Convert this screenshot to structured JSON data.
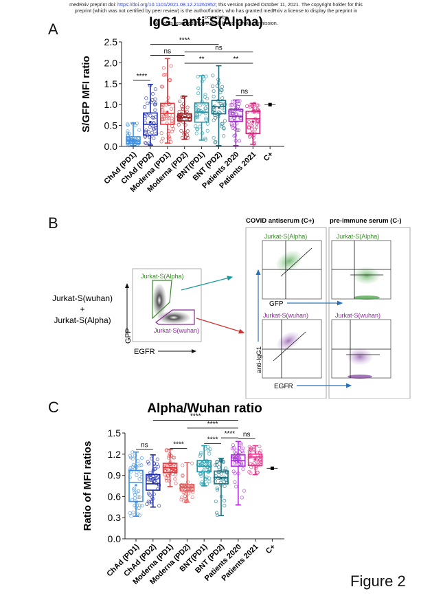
{
  "header": {
    "line1_pre": "medRxiv preprint doi: ",
    "doi_link": "https://doi.org/10.1101/2021.08.12.21261952",
    "line1_post": "; this version posted October 11, 2021. The copyright holder for this",
    "line2": "preprint (which was not certified by peer review) is the author/funder, who has granted medRxiv a license to display the preprint in",
    "line3": "perpetuity.",
    "line4": "All rights reserved. No reuse allowed without permission."
  },
  "panels": {
    "a_letter": "A",
    "b_letter": "B",
    "c_letter": "C"
  },
  "figure_label": "Figure 2",
  "panel_b": {
    "mix_line1": "Jurkat-S(wuhan)",
    "mix_plus": "+",
    "mix_line2": "Jurkat-S(Alpha)",
    "overview_gate_alpha": "Jurkat-S(Alpha)",
    "overview_gate_wuhan": "Jurkat-S(wuhan)",
    "overview_xlabel": "EGFR",
    "overview_ylabel": "GFP",
    "col1_title": "COVID antiserum (C+)",
    "col2_title": "pre-immune serum (C-)",
    "plot_alpha_title": "Jurkat-S(Alpha)",
    "plot_wuhan_title": "Jurkat-S(wuhan)",
    "gfp_label": "GFP",
    "egfr_label": "EGFR",
    "antiigg1_label": "anti-IgG1",
    "colors": {
      "alpha": "#3a8a2a",
      "wuhan": "#8a2a9a",
      "arrow_blue": "#2a72b8",
      "arrow_teal": "#1a9aa0",
      "arrow_red": "#d03030"
    }
  },
  "chart_data": [
    {
      "type": "box",
      "title": "IgG1 anti-S(Alpha)",
      "xlabel": "",
      "ylabel": "S/GFP MFI ratio",
      "ylim": [
        0,
        2.5
      ],
      "yticks": [
        "0.0",
        "0.5",
        "1.0",
        "1.5",
        "2.0",
        "2.5"
      ],
      "categories": [
        "ChAd (PD1)",
        "ChAd (PD2)",
        "Moderna (PD1)",
        "Moderna (PD2)",
        "BNT(PD1)",
        "BNT (PD2)",
        "Patients 2020",
        "Patients 2021",
        "C+"
      ],
      "series": [
        {
          "name": "ChAd (PD1)",
          "color": "#3b8fe0",
          "min": 0.02,
          "q1": 0.07,
          "median": 0.13,
          "q3": 0.23,
          "max": 0.56,
          "mean": 0.17
        },
        {
          "name": "ChAd (PD2)",
          "color": "#1c2aa8",
          "min": 0.03,
          "q1": 0.27,
          "median": 0.53,
          "q3": 0.8,
          "max": 1.48,
          "mean": 0.58
        },
        {
          "name": "Moderna (PD1)",
          "color": "#e8353a",
          "min": 0.08,
          "q1": 0.53,
          "median": 0.79,
          "q3": 1.03,
          "max": 2.1,
          "mean": 0.83
        },
        {
          "name": "Moderna (PD2)",
          "color": "#a01c22",
          "min": 0.17,
          "q1": 0.61,
          "median": 0.69,
          "q3": 0.78,
          "max": 1.2,
          "mean": 0.7
        },
        {
          "name": "BNT(PD1)",
          "color": "#1a9aaa",
          "min": 0.15,
          "q1": 0.58,
          "median": 0.82,
          "q3": 1.04,
          "max": 1.69,
          "mean": 0.82
        },
        {
          "name": "BNT (PD2)",
          "color": "#156f80",
          "min": 0.02,
          "q1": 0.78,
          "median": 0.95,
          "q3": 1.1,
          "max": 1.93,
          "mean": 0.93
        },
        {
          "name": "Patients 2020",
          "color": "#9a2ac8",
          "min": 0.02,
          "q1": 0.6,
          "median": 0.72,
          "q3": 0.88,
          "max": 1.11,
          "mean": 0.72
        },
        {
          "name": "Patients 2021",
          "color": "#d4207a",
          "min": 0.05,
          "q1": 0.31,
          "median": 0.66,
          "q3": 0.84,
          "max": 1.03,
          "mean": 0.59
        },
        {
          "name": "C+",
          "color": "#000000",
          "value": 1.0
        }
      ],
      "significance": [
        {
          "from": 0,
          "to": 1,
          "label": "****",
          "y": 1.58
        },
        {
          "from": 1,
          "to": 3,
          "label": "ns",
          "y": 2.18
        },
        {
          "from": 1,
          "to": 5,
          "label": "****",
          "y": 2.44
        },
        {
          "from": 3,
          "to": 7,
          "label": "ns",
          "y": 2.26
        },
        {
          "from": 3,
          "to": 5,
          "label": "**",
          "y": 1.99
        },
        {
          "from": 5,
          "to": 7,
          "label": "**",
          "y": 1.99
        },
        {
          "from": 6,
          "to": 7,
          "label": "ns",
          "y": 1.22
        }
      ]
    },
    {
      "type": "box",
      "title": "Alpha/Wuhan ratio",
      "xlabel": "",
      "ylabel": "Ratio of MFI ratios",
      "ylim": [
        0,
        1.5
      ],
      "yticks": [
        "0.0",
        "0.3",
        "0.6",
        "0.9",
        "1.2",
        "1.5"
      ],
      "categories": [
        "ChAd (PD1)",
        "ChAd (PD2)",
        "Moderna (PD1)",
        "Moderna (PD2)",
        "BNT(PD1)",
        "BNT (PD2)",
        "Patients 2020",
        "Patients 2021",
        "C+"
      ],
      "series": [
        {
          "name": "ChAd (PD1)",
          "color": "#3b8fe0",
          "min": 0.32,
          "q1": 0.53,
          "median": 0.8,
          "q3": 0.97,
          "max": 1.23,
          "mean": 0.76
        },
        {
          "name": "ChAd (PD2)",
          "color": "#1c2aa8",
          "min": 0.45,
          "q1": 0.69,
          "median": 0.78,
          "q3": 0.91,
          "max": 1.19,
          "mean": 0.79
        },
        {
          "name": "Moderna (PD1)",
          "color": "#e8353a",
          "min": 0.74,
          "q1": 0.94,
          "median": 1.01,
          "q3": 1.07,
          "max": 1.27,
          "mean": 1.01
        },
        {
          "name": "Moderna (PD2)",
          "color": "#e05a5a",
          "min": 0.52,
          "q1": 0.68,
          "median": 0.73,
          "q3": 0.77,
          "max": 1.08,
          "mean": 0.74
        },
        {
          "name": "BNT(PD1)",
          "color": "#1a9aaa",
          "min": 0.75,
          "q1": 0.95,
          "median": 1.03,
          "q3": 1.11,
          "max": 1.32,
          "mean": 1.03
        },
        {
          "name": "BNT (PD2)",
          "color": "#156f80",
          "min": 0.33,
          "q1": 0.78,
          "median": 0.87,
          "q3": 0.96,
          "max": 1.14,
          "mean": 0.86
        },
        {
          "name": "Patients 2020",
          "color": "#b02ae0",
          "min": 0.48,
          "q1": 1.03,
          "median": 1.11,
          "q3": 1.19,
          "max": 1.38,
          "mean": 1.09
        },
        {
          "name": "Patients 2021",
          "color": "#e8308a",
          "min": 0.91,
          "q1": 1.04,
          "median": 1.16,
          "q3": 1.2,
          "max": 1.32,
          "mean": 1.13
        },
        {
          "name": "C+",
          "color": "#000000",
          "value": 1.0
        }
      ],
      "significance": [
        {
          "from": 0,
          "to": 1,
          "label": "ns",
          "y": 1.27
        },
        {
          "from": 2,
          "to": 3,
          "label": "****",
          "y": 1.28
        },
        {
          "from": 4,
          "to": 5,
          "label": "****",
          "y": 1.35
        },
        {
          "from": 5,
          "to": 6,
          "label": "****",
          "y": 1.43
        },
        {
          "from": 6,
          "to": 7,
          "label": "ns",
          "y": 1.42
        },
        {
          "from": 3,
          "to": 6,
          "label": "****",
          "y": 1.57
        },
        {
          "from": 1,
          "to": 6,
          "label": "****",
          "y": 1.68
        }
      ]
    }
  ]
}
